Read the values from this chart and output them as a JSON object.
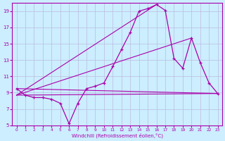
{
  "xlabel": "Windchill (Refroidissement éolien,°C)",
  "bg_color": "#cceeff",
  "line_color": "#aa00aa",
  "grid_color": "#bbbbdd",
  "xlim": [
    -0.5,
    23.5
  ],
  "ylim": [
    5,
    20
  ],
  "xticks": [
    0,
    1,
    2,
    3,
    4,
    5,
    6,
    7,
    8,
    9,
    10,
    11,
    12,
    13,
    14,
    15,
    16,
    17,
    18,
    19,
    20,
    21,
    22,
    23
  ],
  "yticks": [
    5,
    7,
    9,
    11,
    13,
    15,
    17,
    19
  ],
  "main_x": [
    0,
    1,
    2,
    3,
    4,
    5,
    6,
    7,
    8,
    9,
    10,
    11,
    12,
    13,
    14,
    15,
    16,
    17,
    18,
    19,
    20,
    21,
    22,
    23
  ],
  "main_y": [
    9.5,
    8.7,
    8.4,
    8.4,
    8.2,
    7.7,
    5.2,
    7.7,
    9.5,
    9.8,
    10.2,
    12.2,
    14.3,
    16.4,
    19.0,
    19.3,
    19.8,
    19.1,
    13.2,
    12.0,
    15.7,
    12.7,
    10.2,
    8.9
  ],
  "ref_lines": [
    {
      "x": [
        0,
        23
      ],
      "y": [
        9.5,
        8.9
      ]
    },
    {
      "x": [
        0,
        23
      ],
      "y": [
        8.7,
        8.9
      ]
    },
    {
      "x": [
        0,
        16
      ],
      "y": [
        8.7,
        19.8
      ]
    },
    {
      "x": [
        0,
        20
      ],
      "y": [
        8.7,
        15.7
      ]
    }
  ]
}
